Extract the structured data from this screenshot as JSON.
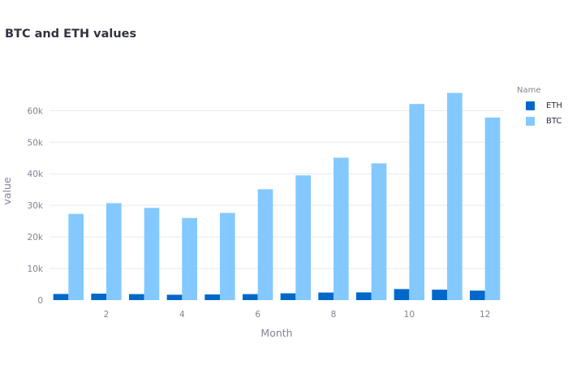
{
  "chart_data": {
    "type": "bar",
    "title": "BTC and ETH values",
    "xlabel": "Month",
    "ylabel": "value",
    "legend_title": "Name",
    "legend_position": "top-right",
    "grid": true,
    "barmode": "grouped",
    "ylim": [
      0,
      66000
    ],
    "x": [
      1,
      2,
      3,
      4,
      5,
      6,
      7,
      8,
      9,
      10,
      11,
      12
    ],
    "x_ticks": [
      2,
      4,
      6,
      8,
      10,
      12
    ],
    "x_tick_labels": [
      "2",
      "4",
      "6",
      "8",
      "10",
      "12"
    ],
    "y_ticks": [
      0,
      10000,
      20000,
      30000,
      40000,
      50000,
      60000
    ],
    "y_tick_labels": [
      "0",
      "10k",
      "20k",
      "30k",
      "40k",
      "50k",
      "60k"
    ],
    "series": [
      {
        "name": "ETH",
        "color": "#0068c9",
        "values": [
          1950,
          2050,
          1900,
          1700,
          1800,
          1900,
          2150,
          2400,
          2450,
          3500,
          3300,
          3000
        ]
      },
      {
        "name": "BTC",
        "color": "#83c9ff",
        "values": [
          27300,
          30700,
          29200,
          26000,
          27600,
          35100,
          39500,
          45100,
          43300,
          62100,
          65600,
          57800
        ]
      }
    ]
  }
}
